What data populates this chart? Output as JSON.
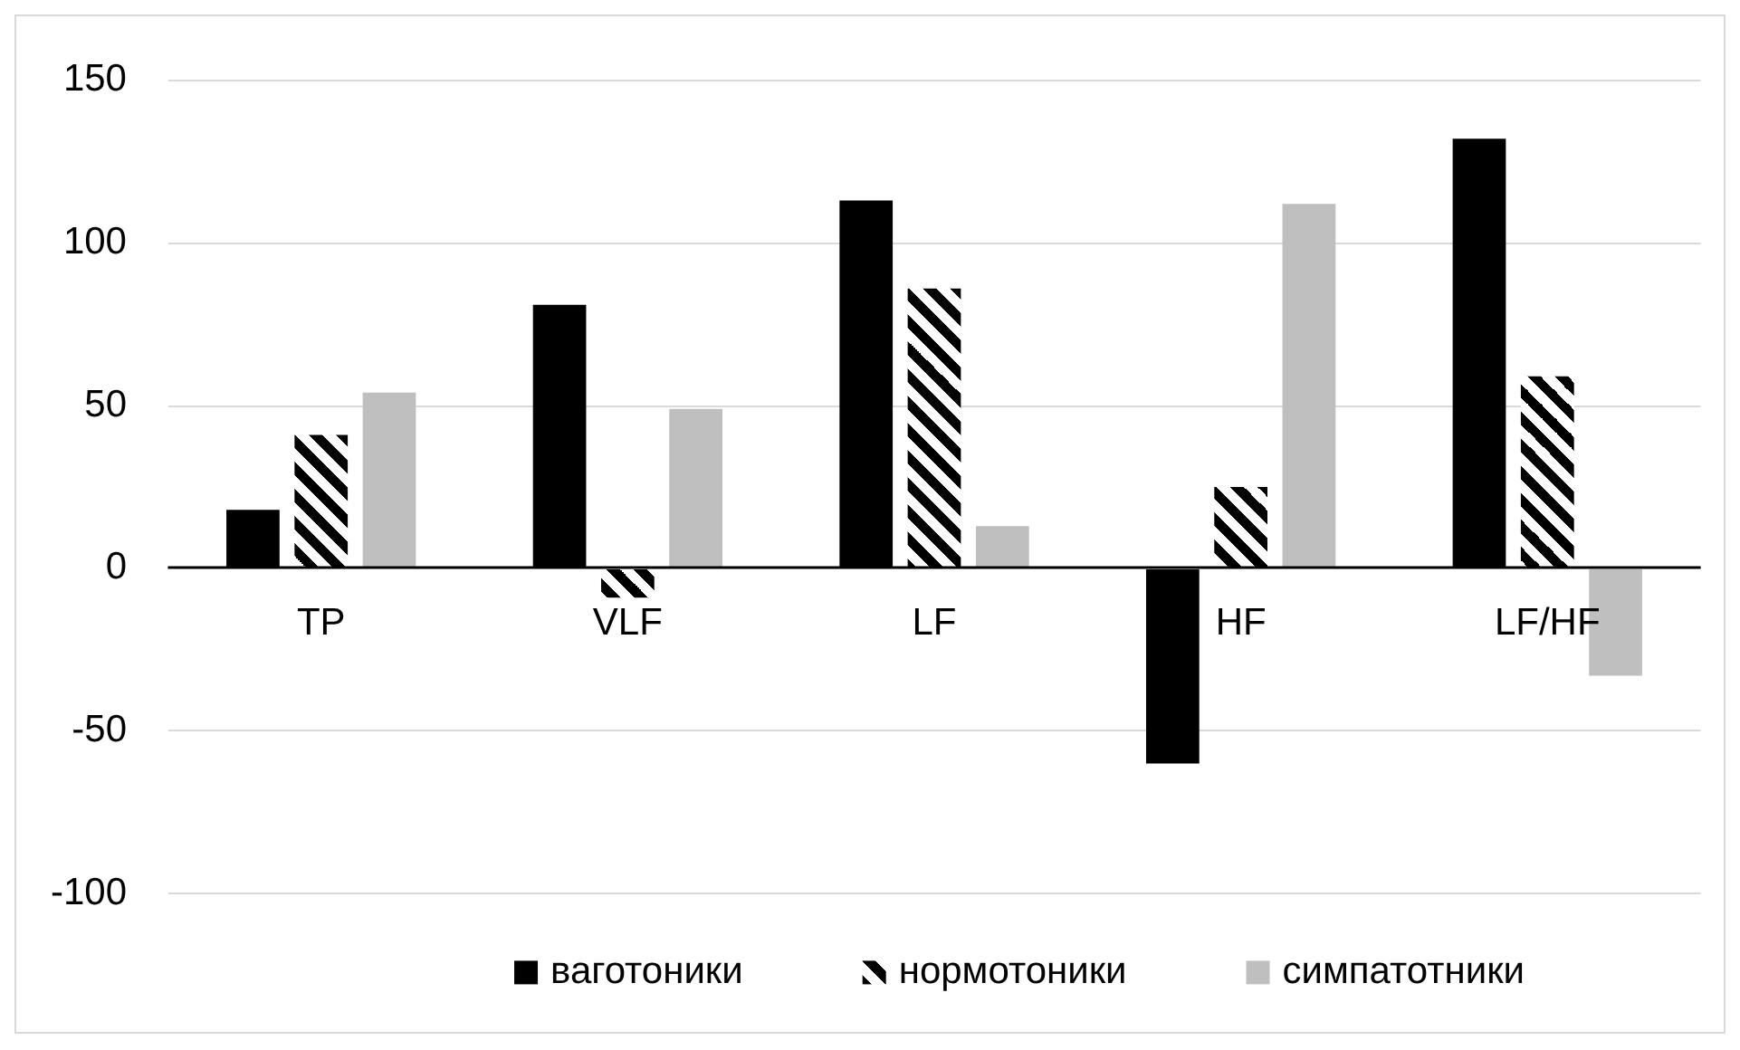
{
  "chart_data": {
    "type": "bar",
    "categories": [
      "TP",
      "VLF",
      "LF",
      "HF",
      "LF/HF"
    ],
    "series": [
      {
        "name": "ваготоники",
        "color": "#000000",
        "values": [
          18,
          81,
          113,
          -60,
          132
        ]
      },
      {
        "name": "нормотоники",
        "color": "#000000",
        "values": [
          41,
          -9,
          86,
          25,
          59
        ]
      },
      {
        "name": "симпатотники",
        "color": "#bfbfbf",
        "values": [
          54,
          49,
          13,
          112,
          -33
        ]
      }
    ],
    "ylim": [
      -100,
      150
    ],
    "yticks": [
      -100,
      -50,
      0,
      50,
      100,
      150
    ],
    "grid": "y",
    "legend": "bottom"
  }
}
